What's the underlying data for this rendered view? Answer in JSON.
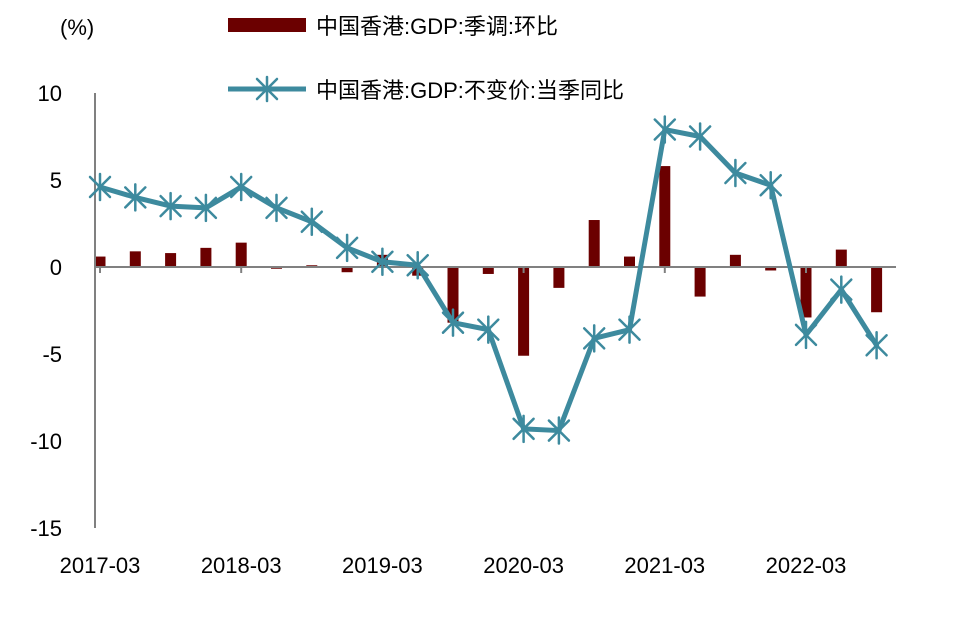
{
  "chart_data": {
    "type": "bar+line",
    "unit_label": "(%)",
    "ylim": [
      -15,
      10
    ],
    "y_ticks": [
      10,
      5,
      0,
      -5,
      -10,
      -15
    ],
    "x_tick_labels": [
      "2017-03",
      "2018-03",
      "2019-03",
      "2020-03",
      "2021-03",
      "2022-03"
    ],
    "categories": [
      "2017-03",
      "2017-06",
      "2017-09",
      "2017-12",
      "2018-03",
      "2018-06",
      "2018-09",
      "2018-12",
      "2019-03",
      "2019-06",
      "2019-09",
      "2019-12",
      "2020-03",
      "2020-06",
      "2020-09",
      "2020-12",
      "2021-03",
      "2021-06",
      "2021-09",
      "2021-12",
      "2022-03",
      "2022-06",
      "2022-09"
    ],
    "series": [
      {
        "name": "中国香港:GDP:季调:环比",
        "type": "bar",
        "color": "#6b0000",
        "values": [
          0.6,
          0.9,
          0.8,
          1.1,
          1.4,
          -0.1,
          0.1,
          -0.3,
          0.7,
          -0.5,
          -3.2,
          -0.4,
          -5.1,
          -1.2,
          2.7,
          0.6,
          5.8,
          -1.7,
          0.7,
          -0.2,
          -2.9,
          1.0,
          -2.6
        ]
      },
      {
        "name": "中国香港:GDP:不变价:当季同比",
        "type": "line",
        "color": "#3d8a9e",
        "marker": "asterisk",
        "values": [
          4.6,
          4.0,
          3.5,
          3.4,
          4.6,
          3.4,
          2.6,
          1.1,
          0.3,
          0.1,
          -3.2,
          -3.6,
          -9.3,
          -9.4,
          -4.1,
          -3.6,
          7.9,
          7.5,
          5.4,
          4.7,
          -3.9,
          -1.3,
          -4.5
        ]
      }
    ]
  }
}
